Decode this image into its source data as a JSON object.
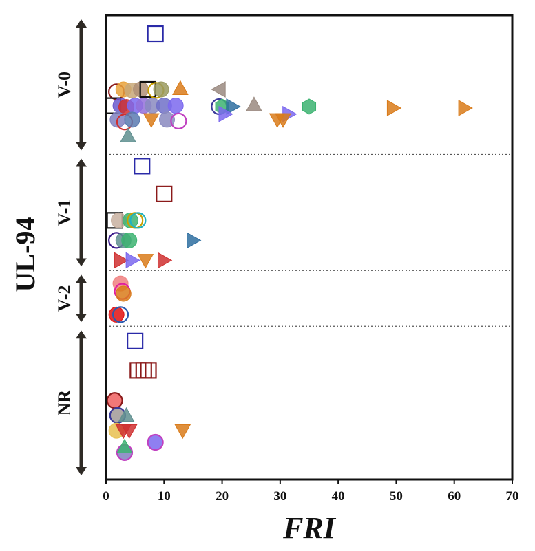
{
  "chart_data": {
    "type": "scatter",
    "title": "",
    "xlabel": "FRI",
    "ylabel": "UL-94",
    "xlim": [
      0,
      70
    ],
    "xticks": [
      "0",
      "10",
      "20",
      "30",
      "40",
      "50",
      "60",
      "70"
    ],
    "categories": [
      "V-0",
      "V-1",
      "V-2",
      "NR"
    ],
    "category_bands": [
      {
        "name": "V-0",
        "from": 0.0,
        "to": 3.0
      },
      {
        "name": "V-1",
        "from": 3.0,
        "to": 5.5
      },
      {
        "name": "V-2",
        "from": 5.5,
        "to": 6.7
      },
      {
        "name": "NR",
        "from": 6.7,
        "to": 10.0
      }
    ],
    "category_separators": [
      3.0,
      5.5,
      6.7
    ],
    "grid": false,
    "legend": "none",
    "points": [
      {
        "x": 8.5,
        "y": 0.4,
        "shape": "square",
        "filled": false,
        "color": "#2a2aa8"
      },
      {
        "x": 1.8,
        "y": 1.65,
        "shape": "circle",
        "filled": false,
        "color": "#8b1a1a"
      },
      {
        "x": 3.0,
        "y": 1.6,
        "shape": "circle",
        "filled": true,
        "color": "#e8a23c"
      },
      {
        "x": 4.5,
        "y": 1.62,
        "shape": "circle",
        "filled": true,
        "color": "#c8a878"
      },
      {
        "x": 6.0,
        "y": 1.6,
        "shape": "circle",
        "filled": true,
        "color": "#b09078"
      },
      {
        "x": 7.2,
        "y": 1.6,
        "shape": "square",
        "filled": false,
        "color": "#111111"
      },
      {
        "x": 8.6,
        "y": 1.62,
        "shape": "circle",
        "filled": false,
        "color": "#c9a000"
      },
      {
        "x": 9.5,
        "y": 1.6,
        "shape": "circle",
        "filled": true,
        "color": "#9a9a60"
      },
      {
        "x": 12.8,
        "y": 1.58,
        "shape": "triangle-up",
        "filled": true,
        "color": "#d97b1a"
      },
      {
        "x": 19.5,
        "y": 1.6,
        "shape": "triangle-left",
        "filled": true,
        "color": "#9a8a80"
      },
      {
        "x": 1.2,
        "y": 1.95,
        "shape": "square",
        "filled": false,
        "color": "#111111"
      },
      {
        "x": 2.5,
        "y": 1.95,
        "shape": "circle",
        "filled": true,
        "color": "#6a5acd"
      },
      {
        "x": 3.5,
        "y": 1.98,
        "shape": "circle",
        "filled": true,
        "color": "#cf3030"
      },
      {
        "x": 5.0,
        "y": 1.95,
        "shape": "circle",
        "filled": true,
        "color": "#7b68ee"
      },
      {
        "x": 6.5,
        "y": 1.95,
        "shape": "circle",
        "filled": true,
        "color": "#9370db"
      },
      {
        "x": 8.0,
        "y": 1.95,
        "shape": "circle",
        "filled": true,
        "color": "#8a8ac0"
      },
      {
        "x": 10.0,
        "y": 1.95,
        "shape": "circle",
        "filled": true,
        "color": "#7070c8"
      },
      {
        "x": 12.0,
        "y": 1.95,
        "shape": "circle",
        "filled": true,
        "color": "#7b68ee"
      },
      {
        "x": 19.5,
        "y": 1.97,
        "shape": "circle",
        "filled": false,
        "color": "#3a3a9a"
      },
      {
        "x": 20.0,
        "y": 1.97,
        "shape": "hexagon",
        "filled": true,
        "color": "#3cb371"
      },
      {
        "x": 21.8,
        "y": 1.97,
        "shape": "triangle-right",
        "filled": true,
        "color": "#2e6ea0"
      },
      {
        "x": 25.5,
        "y": 1.93,
        "shape": "triangle-up",
        "filled": true,
        "color": "#9a8a80"
      },
      {
        "x": 35.0,
        "y": 1.97,
        "shape": "hexagon",
        "filled": true,
        "color": "#3cb371"
      },
      {
        "x": 49.5,
        "y": 2.0,
        "shape": "triangle-right",
        "filled": true,
        "color": "#d97b1a"
      },
      {
        "x": 61.8,
        "y": 2.0,
        "shape": "triangle-right",
        "filled": true,
        "color": "#d97b1a"
      },
      {
        "x": 20.5,
        "y": 2.13,
        "shape": "triangle-right",
        "filled": true,
        "color": "#7b68ee"
      },
      {
        "x": 31.5,
        "y": 2.13,
        "shape": "triangle-right",
        "filled": true,
        "color": "#7b68ee"
      },
      {
        "x": 29.5,
        "y": 2.25,
        "shape": "triangle-down",
        "filled": true,
        "color": "#d97b1a"
      },
      {
        "x": 30.5,
        "y": 2.25,
        "shape": "triangle-down",
        "filled": true,
        "color": "#d97b1a"
      },
      {
        "x": 2.0,
        "y": 2.25,
        "shape": "circle",
        "filled": true,
        "color": "#8080c0"
      },
      {
        "x": 3.2,
        "y": 2.3,
        "shape": "circle",
        "filled": false,
        "color": "#cf3030"
      },
      {
        "x": 4.5,
        "y": 2.25,
        "shape": "circle",
        "filled": true,
        "color": "#5a7ab0"
      },
      {
        "x": 7.8,
        "y": 2.25,
        "shape": "triangle-down",
        "filled": true,
        "color": "#d97b1a"
      },
      {
        "x": 10.5,
        "y": 2.25,
        "shape": "circle",
        "filled": true,
        "color": "#8a8ac0"
      },
      {
        "x": 12.5,
        "y": 2.28,
        "shape": "circle",
        "filled": false,
        "color": "#c040c0"
      },
      {
        "x": 3.8,
        "y": 2.6,
        "shape": "triangle-up",
        "filled": true,
        "color": "#5f8f8f"
      },
      {
        "x": 6.2,
        "y": 3.25,
        "shape": "square",
        "filled": false,
        "color": "#2a2aa8"
      },
      {
        "x": 10.0,
        "y": 3.85,
        "shape": "square",
        "filled": false,
        "color": "#8b1a1a"
      },
      {
        "x": 1.5,
        "y": 4.42,
        "shape": "square",
        "filled": false,
        "color": "#111111"
      },
      {
        "x": 2.2,
        "y": 4.42,
        "shape": "circle",
        "filled": true,
        "color": "#c8b0a0"
      },
      {
        "x": 4.2,
        "y": 4.42,
        "shape": "circle",
        "filled": true,
        "color": "#3cb371"
      },
      {
        "x": 5.0,
        "y": 4.42,
        "shape": "circle",
        "filled": false,
        "color": "#c9a000"
      },
      {
        "x": 5.5,
        "y": 4.42,
        "shape": "circle",
        "filled": false,
        "color": "#20b2c0"
      },
      {
        "x": 1.8,
        "y": 4.85,
        "shape": "circle",
        "filled": false,
        "color": "#3a1a8a"
      },
      {
        "x": 3.0,
        "y": 4.85,
        "shape": "circle",
        "filled": true,
        "color": "#5f8f8f"
      },
      {
        "x": 4.0,
        "y": 4.85,
        "shape": "circle",
        "filled": true,
        "color": "#3cb371"
      },
      {
        "x": 15.0,
        "y": 4.85,
        "shape": "triangle-right",
        "filled": true,
        "color": "#2e6ea0"
      },
      {
        "x": 2.5,
        "y": 5.28,
        "shape": "triangle-right",
        "filled": true,
        "color": "#cf3030"
      },
      {
        "x": 4.5,
        "y": 5.28,
        "shape": "triangle-right",
        "filled": true,
        "color": "#7b68ee"
      },
      {
        "x": 6.8,
        "y": 5.28,
        "shape": "triangle-down",
        "filled": true,
        "color": "#d97b1a"
      },
      {
        "x": 10.0,
        "y": 5.28,
        "shape": "triangle-right",
        "filled": true,
        "color": "#cf3030"
      },
      {
        "x": 2.5,
        "y": 5.78,
        "shape": "circle",
        "filled": true,
        "color": "#f08080"
      },
      {
        "x": 2.8,
        "y": 5.95,
        "shape": "circle",
        "filled": false,
        "color": "#e020a0"
      },
      {
        "x": 3.0,
        "y": 6.0,
        "shape": "circle",
        "filled": true,
        "color": "#d97b1a"
      },
      {
        "x": 1.8,
        "y": 6.45,
        "shape": "circle",
        "filled": true,
        "color": "#e01010"
      },
      {
        "x": 2.5,
        "y": 6.45,
        "shape": "circle",
        "filled": false,
        "color": "#2a5ab0"
      },
      {
        "x": 5.0,
        "y": 7.02,
        "shape": "square",
        "filled": false,
        "color": "#2a2aa8"
      },
      {
        "x": 5.5,
        "y": 7.65,
        "shape": "square",
        "filled": false,
        "color": "#8b1a1a"
      },
      {
        "x": 6.5,
        "y": 7.65,
        "shape": "square",
        "filled": false,
        "color": "#8b1a1a"
      },
      {
        "x": 7.3,
        "y": 7.65,
        "shape": "square",
        "filled": false,
        "color": "#8b1a1a"
      },
      {
        "x": 1.5,
        "y": 8.3,
        "shape": "circle",
        "filled": true,
        "color": "#f06060"
      },
      {
        "x": 1.5,
        "y": 8.3,
        "shape": "circle",
        "filled": false,
        "color": "#8b1a1a"
      },
      {
        "x": 2.0,
        "y": 8.62,
        "shape": "circle",
        "filled": true,
        "color": "#a09a98"
      },
      {
        "x": 2.0,
        "y": 8.62,
        "shape": "circle",
        "filled": false,
        "color": "#3a3a9a"
      },
      {
        "x": 3.5,
        "y": 8.62,
        "shape": "triangle-up",
        "filled": true,
        "color": "#5f8f8f"
      },
      {
        "x": 1.8,
        "y": 8.95,
        "shape": "circle",
        "filled": true,
        "color": "#e8c050"
      },
      {
        "x": 3.0,
        "y": 8.95,
        "shape": "triangle-down",
        "filled": true,
        "color": "#cf3030"
      },
      {
        "x": 4.0,
        "y": 8.95,
        "shape": "triangle-down",
        "filled": true,
        "color": "#cf3030"
      },
      {
        "x": 13.2,
        "y": 8.95,
        "shape": "triangle-down",
        "filled": true,
        "color": "#d97b1a"
      },
      {
        "x": 8.5,
        "y": 9.2,
        "shape": "circle",
        "filled": true,
        "color": "#7b68ee"
      },
      {
        "x": 8.5,
        "y": 9.2,
        "shape": "circle",
        "filled": false,
        "color": "#c040c0"
      },
      {
        "x": 3.2,
        "y": 9.42,
        "shape": "circle",
        "filled": true,
        "color": "#8080c0"
      },
      {
        "x": 3.2,
        "y": 9.42,
        "shape": "circle",
        "filled": false,
        "color": "#c040c0"
      },
      {
        "x": 3.2,
        "y": 9.3,
        "shape": "triangle-up",
        "filled": true,
        "color": "#3cb371"
      }
    ]
  }
}
